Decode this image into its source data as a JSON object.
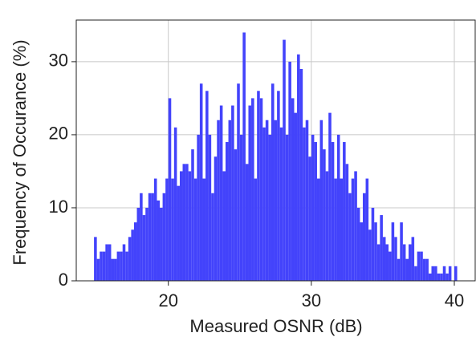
{
  "chart_data": {
    "type": "histogram",
    "xlabel": "Measured OSNR (dB)",
    "ylabel": "Frequency of Occurance (%)",
    "color": "#4343fb",
    "grid": true,
    "xlim": [
      13.56,
      41.46
    ],
    "ylim": [
      0,
      35.7
    ],
    "xticks": [
      20,
      30,
      40
    ],
    "yticks": [
      0,
      10,
      20,
      30
    ],
    "bins": [
      14.8,
      15.0,
      15.2,
      15.4,
      15.6,
      15.8,
      16.0,
      16.2,
      16.4,
      16.6,
      16.8,
      17.0,
      17.2,
      17.4,
      17.6,
      17.8,
      18.0,
      18.2,
      18.4,
      18.6,
      18.8,
      19.0,
      19.2,
      19.4,
      19.6,
      19.8,
      20.0,
      20.2,
      20.4,
      20.6,
      20.8,
      21.0,
      21.2,
      21.4,
      21.6,
      21.8,
      22.0,
      22.2,
      22.4,
      22.6,
      22.8,
      23.0,
      23.2,
      23.4,
      23.6,
      23.8,
      24.0,
      24.2,
      24.4,
      24.6,
      24.8,
      25.0,
      25.2,
      25.4,
      25.6,
      25.8,
      26.0,
      26.2,
      26.4,
      26.6,
      26.8,
      27.0,
      27.2,
      27.4,
      27.6,
      27.8,
      28.0,
      28.2,
      28.4,
      28.6,
      28.8,
      29.0,
      29.2,
      29.4,
      29.6,
      29.8,
      30.0,
      30.2,
      30.4,
      30.6,
      30.8,
      31.0,
      31.2,
      31.4,
      31.6,
      31.8,
      32.0,
      32.2,
      32.4,
      32.6,
      32.8,
      33.0,
      33.2,
      33.4,
      33.6,
      33.8,
      34.0,
      34.2,
      34.4,
      34.6,
      34.8,
      35.0,
      35.2,
      35.4,
      35.6,
      35.8,
      36.0,
      36.2,
      36.4,
      36.6,
      36.8,
      37.0,
      37.2,
      37.4,
      37.6,
      37.8,
      38.0,
      38.2,
      38.4,
      38.6,
      38.8,
      39.0,
      39.2,
      39.4,
      39.6,
      39.8,
      40.0,
      40.2
    ],
    "counts": [
      6,
      3,
      4,
      4,
      5,
      5,
      3,
      3,
      4,
      4,
      5,
      4,
      6,
      7,
      8,
      10,
      12,
      9,
      10,
      12,
      12,
      14,
      11,
      10,
      12,
      14,
      25,
      14,
      21,
      13,
      15,
      16,
      16,
      15,
      18,
      14,
      20,
      27,
      14,
      26,
      20,
      12,
      17,
      22,
      24,
      15,
      19,
      22,
      24,
      18,
      27,
      20,
      34,
      16,
      24,
      25,
      14,
      26,
      25,
      21,
      22,
      20,
      27,
      22,
      26,
      21,
      33,
      20,
      30,
      25,
      23,
      31,
      29,
      21,
      22,
      17,
      20,
      19,
      14,
      22,
      18,
      15,
      23,
      19,
      14,
      20,
      14,
      19,
      16,
      12,
      14,
      15,
      10,
      8,
      12,
      14,
      7,
      10,
      8,
      5,
      9,
      6,
      5,
      4,
      8,
      6,
      3,
      8,
      5,
      3,
      5,
      6,
      2,
      4,
      4,
      3,
      3,
      1,
      2,
      2,
      1,
      1,
      2,
      1,
      2,
      0,
      2
    ]
  }
}
